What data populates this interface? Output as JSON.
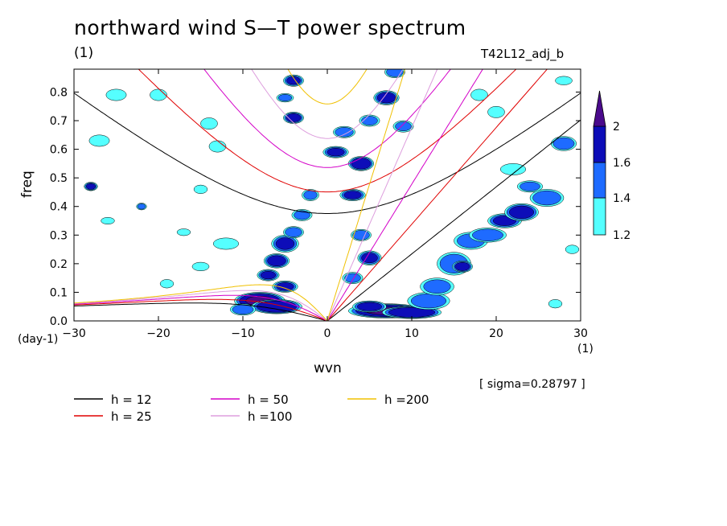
{
  "title": "northward wind S—T power spectrum",
  "unit_label": "(1)",
  "case_label": "T42L12_adj_b",
  "sigma_text": "[ sigma=0.28797 ]",
  "colors": {
    "c12": "#55ffff",
    "c14": "#1e6bff",
    "c16": "#0d0db8",
    "c20": "#4a0a8c",
    "h12": "#000000",
    "h25": "#e00000",
    "h50": "#d400c8",
    "h100": "#dd9ddd",
    "h200": "#f0c000"
  },
  "chart_data": {
    "type": "heatmap",
    "title": "northward wind S—T power spectrum",
    "xlabel": "wvn",
    "ylabel": "freq",
    "x_unit": "(1)",
    "y_unit": "(day-1)",
    "xlim": [
      -30,
      30
    ],
    "ylim": [
      0,
      0.88
    ],
    "x_ticks": [
      -30,
      -20,
      -10,
      0,
      10,
      20,
      30
    ],
    "y_ticks": [
      0.0,
      0.1,
      0.2,
      0.3,
      0.4,
      0.5,
      0.6,
      0.7,
      0.8
    ],
    "x_tick_labels": [
      "−30",
      "−20",
      "−10",
      "0",
      "10",
      "20",
      "30"
    ],
    "y_tick_labels": [
      "0.0",
      "0.1",
      "0.2",
      "0.3",
      "0.4",
      "0.5",
      "0.6",
      "0.7",
      "0.8"
    ],
    "colorbar": {
      "levels": [
        1.2,
        1.4,
        1.6,
        2
      ],
      "labels": [
        "1.2",
        "1.4",
        "1.6",
        "2"
      ]
    },
    "dispersion_curves": [
      {
        "label": "h = 12",
        "h": 12
      },
      {
        "label": "h = 25",
        "h": 25
      },
      {
        "label": "h = 50",
        "h": 50
      },
      {
        "label": "h =100",
        "h": 100
      },
      {
        "label": "h =200",
        "h": 200
      }
    ],
    "blobs": [
      {
        "x": 7,
        "y": 0.035,
        "rx": 4.5,
        "ry": 0.025,
        "v": 2.0
      },
      {
        "x": 10,
        "y": 0.03,
        "rx": 3.5,
        "ry": 0.022,
        "v": 1.9
      },
      {
        "x": 5,
        "y": 0.05,
        "rx": 2,
        "ry": 0.02,
        "v": 1.7
      },
      {
        "x": 12,
        "y": 0.07,
        "rx": 2.5,
        "ry": 0.03,
        "v": 1.5
      },
      {
        "x": 13,
        "y": 0.12,
        "rx": 2,
        "ry": 0.03,
        "v": 1.4
      },
      {
        "x": 15,
        "y": 0.2,
        "rx": 2,
        "ry": 0.04,
        "v": 1.5
      },
      {
        "x": 16,
        "y": 0.19,
        "rx": 1.2,
        "ry": 0.02,
        "v": 1.7
      },
      {
        "x": 17,
        "y": 0.28,
        "rx": 2,
        "ry": 0.03,
        "v": 1.45
      },
      {
        "x": 19,
        "y": 0.3,
        "rx": 2.2,
        "ry": 0.025,
        "v": 1.5
      },
      {
        "x": 21,
        "y": 0.35,
        "rx": 2,
        "ry": 0.025,
        "v": 1.6
      },
      {
        "x": 23,
        "y": 0.38,
        "rx": 2,
        "ry": 0.03,
        "v": 1.7
      },
      {
        "x": 26,
        "y": 0.43,
        "rx": 2,
        "ry": 0.03,
        "v": 1.5
      },
      {
        "x": 24,
        "y": 0.47,
        "rx": 1.5,
        "ry": 0.02,
        "v": 1.4
      },
      {
        "x": 28,
        "y": 0.62,
        "rx": 1.5,
        "ry": 0.025,
        "v": 1.5
      },
      {
        "x": 22,
        "y": 0.53,
        "rx": 1.5,
        "ry": 0.02,
        "v": 1.35
      },
      {
        "x": -8,
        "y": 0.07,
        "rx": 3,
        "ry": 0.03,
        "v": 2.0
      },
      {
        "x": -6,
        "y": 0.05,
        "rx": 3,
        "ry": 0.025,
        "v": 1.9
      },
      {
        "x": -10,
        "y": 0.04,
        "rx": 1.5,
        "ry": 0.02,
        "v": 1.5
      },
      {
        "x": -5,
        "y": 0.12,
        "rx": 1.5,
        "ry": 0.02,
        "v": 1.6
      },
      {
        "x": -7,
        "y": 0.16,
        "rx": 1.3,
        "ry": 0.02,
        "v": 1.6
      },
      {
        "x": -6,
        "y": 0.21,
        "rx": 1.5,
        "ry": 0.025,
        "v": 1.7
      },
      {
        "x": -5,
        "y": 0.27,
        "rx": 1.6,
        "ry": 0.03,
        "v": 1.6
      },
      {
        "x": -4,
        "y": 0.31,
        "rx": 1.2,
        "ry": 0.02,
        "v": 1.5
      },
      {
        "x": -3,
        "y": 0.37,
        "rx": 1.2,
        "ry": 0.02,
        "v": 1.4
      },
      {
        "x": -2,
        "y": 0.44,
        "rx": 1,
        "ry": 0.02,
        "v": 1.4
      },
      {
        "x": -4,
        "y": 0.71,
        "rx": 1.2,
        "ry": 0.02,
        "v": 1.7
      },
      {
        "x": -4,
        "y": 0.84,
        "rx": 1.2,
        "ry": 0.02,
        "v": 1.6
      },
      {
        "x": 1,
        "y": 0.59,
        "rx": 1.5,
        "ry": 0.02,
        "v": 1.6
      },
      {
        "x": 2,
        "y": 0.66,
        "rx": 1.3,
        "ry": 0.02,
        "v": 1.5
      },
      {
        "x": 4,
        "y": 0.55,
        "rx": 1.5,
        "ry": 0.025,
        "v": 1.8
      },
      {
        "x": 3,
        "y": 0.44,
        "rx": 1.5,
        "ry": 0.02,
        "v": 1.6
      },
      {
        "x": 4,
        "y": 0.3,
        "rx": 1.2,
        "ry": 0.02,
        "v": 1.5
      },
      {
        "x": 5,
        "y": 0.22,
        "rx": 1.4,
        "ry": 0.025,
        "v": 1.6
      },
      {
        "x": 3,
        "y": 0.15,
        "rx": 1.2,
        "ry": 0.02,
        "v": 1.4
      },
      {
        "x": 7,
        "y": 0.78,
        "rx": 1.5,
        "ry": 0.025,
        "v": 1.7
      },
      {
        "x": 9,
        "y": 0.68,
        "rx": 1.2,
        "ry": 0.02,
        "v": 1.4
      },
      {
        "x": 5,
        "y": 0.7,
        "rx": 1.2,
        "ry": 0.02,
        "v": 1.4
      },
      {
        "x": 8,
        "y": 0.87,
        "rx": 1.2,
        "ry": 0.02,
        "v": 1.5
      },
      {
        "x": -25,
        "y": 0.79,
        "rx": 1.2,
        "ry": 0.02,
        "v": 1.3
      },
      {
        "x": -27,
        "y": 0.63,
        "rx": 1.2,
        "ry": 0.02,
        "v": 1.3
      },
      {
        "x": -20,
        "y": 0.79,
        "rx": 1,
        "ry": 0.02,
        "v": 1.3
      },
      {
        "x": -14,
        "y": 0.69,
        "rx": 1,
        "ry": 0.02,
        "v": 1.3
      },
      {
        "x": -13,
        "y": 0.61,
        "rx": 1,
        "ry": 0.02,
        "v": 1.3
      },
      {
        "x": -28,
        "y": 0.47,
        "rx": 0.8,
        "ry": 0.015,
        "v": 1.6
      },
      {
        "x": -22,
        "y": 0.4,
        "rx": 0.6,
        "ry": 0.012,
        "v": 1.4
      },
      {
        "x": -12,
        "y": 0.27,
        "rx": 1.5,
        "ry": 0.02,
        "v": 1.3
      },
      {
        "x": -15,
        "y": 0.19,
        "rx": 1,
        "ry": 0.015,
        "v": 1.3
      },
      {
        "x": -26,
        "y": 0.35,
        "rx": 0.8,
        "ry": 0.012,
        "v": 1.3
      },
      {
        "x": -17,
        "y": 0.31,
        "rx": 0.8,
        "ry": 0.012,
        "v": 1.3
      },
      {
        "x": 18,
        "y": 0.79,
        "rx": 1,
        "ry": 0.02,
        "v": 1.3
      },
      {
        "x": 20,
        "y": 0.73,
        "rx": 1,
        "ry": 0.02,
        "v": 1.3
      },
      {
        "x": 28,
        "y": 0.84,
        "rx": 1,
        "ry": 0.015,
        "v": 1.3
      },
      {
        "x": 29,
        "y": 0.25,
        "rx": 0.8,
        "ry": 0.015,
        "v": 1.3
      },
      {
        "x": 27,
        "y": 0.06,
        "rx": 0.8,
        "ry": 0.015,
        "v": 1.3
      },
      {
        "x": -19,
        "y": 0.13,
        "rx": 0.8,
        "ry": 0.015,
        "v": 1.3
      },
      {
        "x": -5,
        "y": 0.78,
        "rx": 1,
        "ry": 0.015,
        "v": 1.4
      },
      {
        "x": -15,
        "y": 0.46,
        "rx": 0.8,
        "ry": 0.015,
        "v": 1.3
      }
    ]
  },
  "legend": [
    {
      "label": "h = 12",
      "color_key": "h12"
    },
    {
      "label": "h = 25",
      "color_key": "h25"
    },
    {
      "label": "h = 50",
      "color_key": "h50"
    },
    {
      "label": "h =100",
      "color_key": "h100"
    },
    {
      "label": "h =200",
      "color_key": "h200"
    }
  ]
}
